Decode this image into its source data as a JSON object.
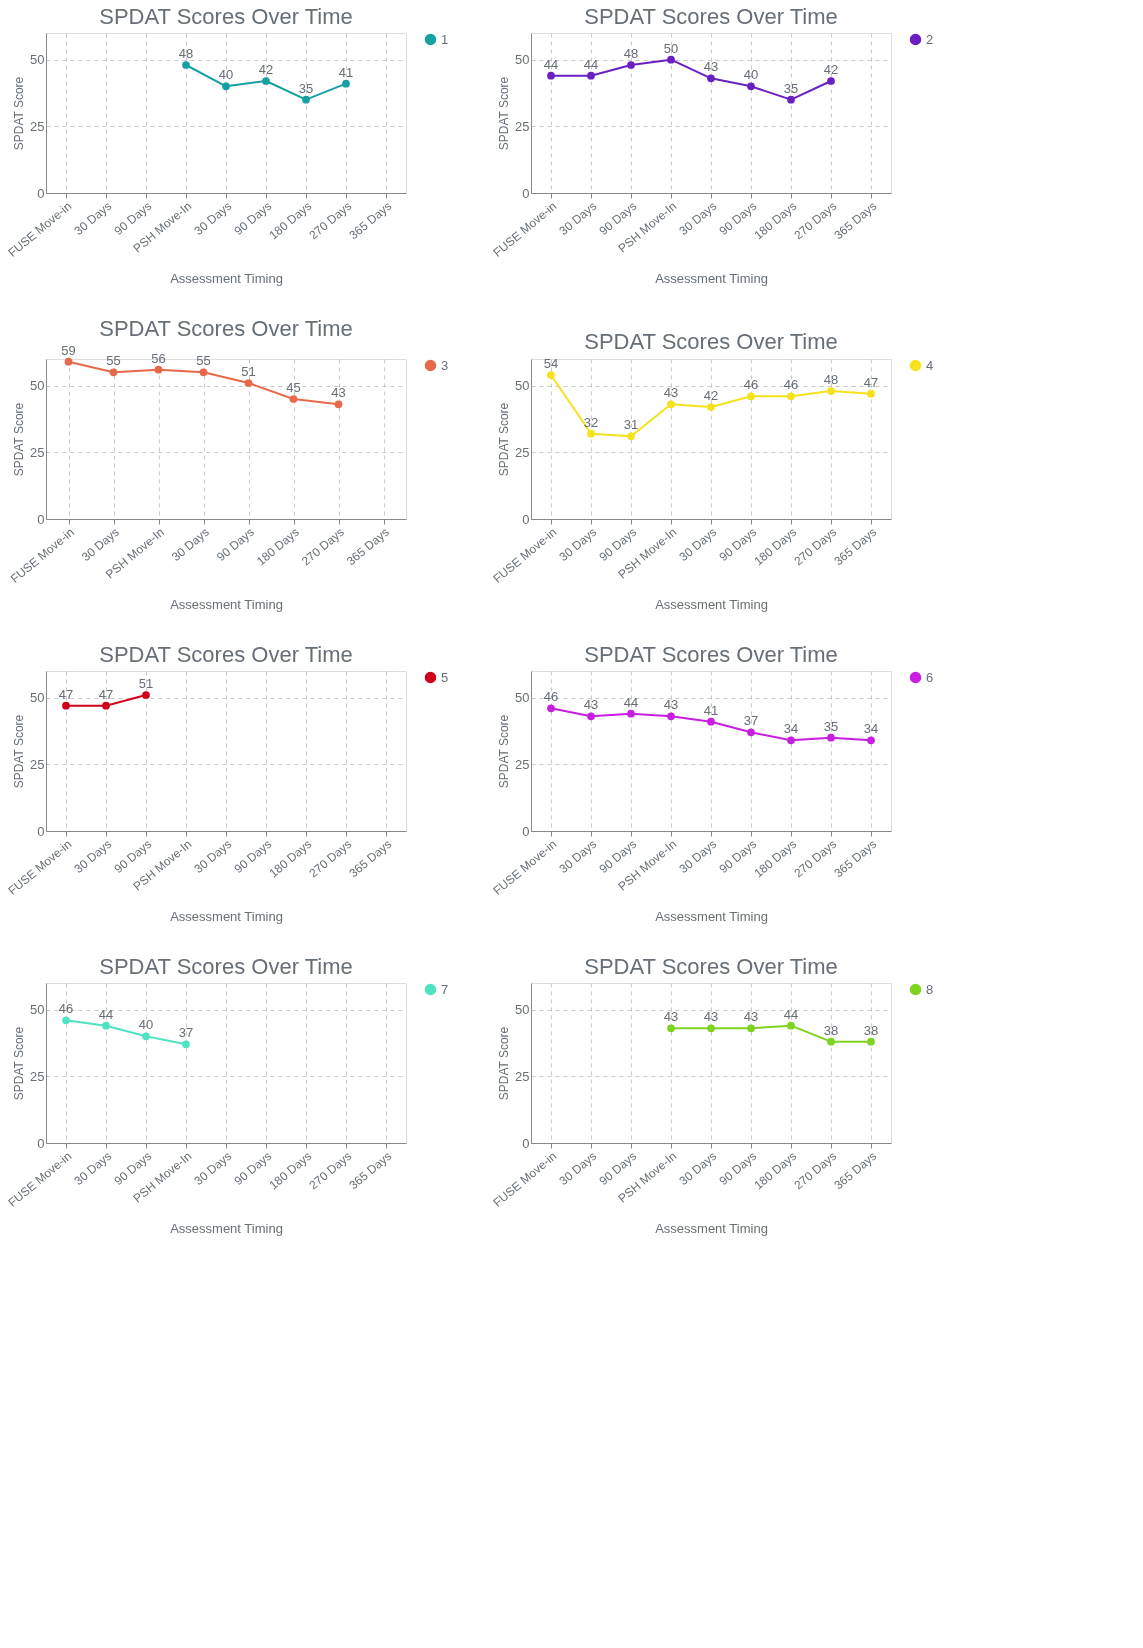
{
  "chart_data": [
    {
      "type": "line",
      "title": "SPDAT Scores Over Time",
      "xlabel": "Assessment Timing",
      "ylabel": "SPDAT Score",
      "categories": [
        "FUSE Move-in",
        "30 Days",
        "90 Days",
        "PSH Move-In",
        "30 Days",
        "90 Days",
        "180 Days",
        "270 Days",
        "365 Days"
      ],
      "series": [
        {
          "name": "1",
          "color": "#17a0a4",
          "values": [
            null,
            null,
            null,
            48,
            40,
            42,
            35,
            41,
            null
          ]
        }
      ],
      "ylim": [
        0,
        60
      ],
      "yticks": [
        0,
        25,
        50
      ],
      "grid": true,
      "legend": "right",
      "marker": "circle",
      "data_labels": true
    },
    {
      "type": "line",
      "title": "SPDAT Scores Over Time",
      "xlabel": "Assessment Timing",
      "ylabel": "SPDAT Score",
      "categories": [
        "FUSE Move-in",
        "30 Days",
        "90 Days",
        "PSH Move-In",
        "30 Days",
        "90 Days",
        "180 Days",
        "270 Days",
        "365 Days"
      ],
      "series": [
        {
          "name": "2",
          "color": "#6a1fc2",
          "values": [
            44,
            44,
            48,
            50,
            43,
            40,
            35,
            42,
            null
          ]
        }
      ],
      "ylim": [
        0,
        60
      ],
      "yticks": [
        0,
        25,
        50
      ],
      "grid": true,
      "legend": "right",
      "marker": "circle",
      "data_labels": true
    },
    {
      "type": "line",
      "title": "SPDAT Scores Over Time",
      "xlabel": "Assessment Timing",
      "ylabel": "SPDAT Score",
      "categories": [
        "FUSE Move-in",
        "30 Days",
        "PSH Move-In",
        "30 Days",
        "90 Days",
        "180 Days",
        "270 Days",
        "365 Days"
      ],
      "series": [
        {
          "name": "3",
          "color": "#e8694a",
          "values": [
            59,
            55,
            56,
            55,
            51,
            45,
            43,
            null
          ]
        }
      ],
      "ylim": [
        0,
        60
      ],
      "yticks": [
        0,
        25,
        50
      ],
      "grid": true,
      "legend": "right",
      "marker": "circle",
      "data_labels": true
    },
    {
      "type": "line",
      "title": "SPDAT Scores Over Time",
      "xlabel": "Assessment Timing",
      "ylabel": "SPDAT Score",
      "categories": [
        "FUSE Move-in",
        "30 Days",
        "90 Days",
        "PSH Move-In",
        "30 Days",
        "90 Days",
        "180 Days",
        "270 Days",
        "365 Days"
      ],
      "series": [
        {
          "name": "4",
          "color": "#f5e11c",
          "values": [
            54,
            32,
            31,
            43,
            42,
            46,
            46,
            48,
            47
          ]
        }
      ],
      "ylim": [
        0,
        60
      ],
      "yticks": [
        0,
        25,
        50
      ],
      "grid": true,
      "legend": "right",
      "marker": "circle",
      "data_labels": true
    },
    {
      "type": "line",
      "title": "SPDAT Scores Over Time",
      "xlabel": "Assessment Timing",
      "ylabel": "SPDAT Score",
      "categories": [
        "FUSE Move-in",
        "30 Days",
        "90 Days",
        "PSH Move-In",
        "30 Days",
        "90 Days",
        "180 Days",
        "270 Days",
        "365 Days"
      ],
      "series": [
        {
          "name": "5",
          "color": "#d0021b",
          "values": [
            47,
            47,
            51,
            null,
            null,
            null,
            null,
            null,
            null
          ]
        }
      ],
      "ylim": [
        0,
        60
      ],
      "yticks": [
        0,
        25,
        50
      ],
      "grid": true,
      "legend": "right",
      "marker": "circle",
      "data_labels": true
    },
    {
      "type": "line",
      "title": "SPDAT Scores Over Time",
      "xlabel": "Assessment Timing",
      "ylabel": "SPDAT Score",
      "categories": [
        "FUSE Move-in",
        "30 Days",
        "90 Days",
        "PSH Move-In",
        "30 Days",
        "90 Days",
        "180 Days",
        "270 Days",
        "365 Days"
      ],
      "series": [
        {
          "name": "6",
          "color": "#c71fe0",
          "values": [
            46,
            43,
            44,
            43,
            41,
            37,
            34,
            35,
            34
          ]
        }
      ],
      "ylim": [
        0,
        60
      ],
      "yticks": [
        0,
        25,
        50
      ],
      "grid": true,
      "legend": "right",
      "marker": "circle",
      "data_labels": true
    },
    {
      "type": "line",
      "title": "SPDAT Scores Over Time",
      "xlabel": "Assessment Timing",
      "ylabel": "SPDAT Score",
      "categories": [
        "FUSE Move-in",
        "30 Days",
        "90 Days",
        "PSH Move-In",
        "30 Days",
        "90 Days",
        "180 Days",
        "270 Days",
        "365 Days"
      ],
      "series": [
        {
          "name": "7",
          "color": "#50e3c2",
          "values": [
            46,
            44,
            40,
            37,
            null,
            null,
            null,
            null,
            null
          ]
        }
      ],
      "ylim": [
        0,
        60
      ],
      "yticks": [
        0,
        25,
        50
      ],
      "grid": true,
      "legend": "right",
      "marker": "circle",
      "data_labels": true
    },
    {
      "type": "line",
      "title": "SPDAT Scores Over Time",
      "xlabel": "Assessment Timing",
      "ylabel": "SPDAT Score",
      "categories": [
        "FUSE Move-in",
        "30 Days",
        "90 Days",
        "PSH Move-In",
        "30 Days",
        "90 Days",
        "180 Days",
        "270 Days",
        "365 Days"
      ],
      "series": [
        {
          "name": "8",
          "color": "#7ed321",
          "values": [
            null,
            null,
            null,
            43,
            43,
            43,
            44,
            38,
            38
          ]
        }
      ],
      "ylim": [
        0,
        60
      ],
      "yticks": [
        0,
        25,
        50
      ],
      "grid": true,
      "legend": "right",
      "marker": "circle",
      "data_labels": true
    }
  ]
}
